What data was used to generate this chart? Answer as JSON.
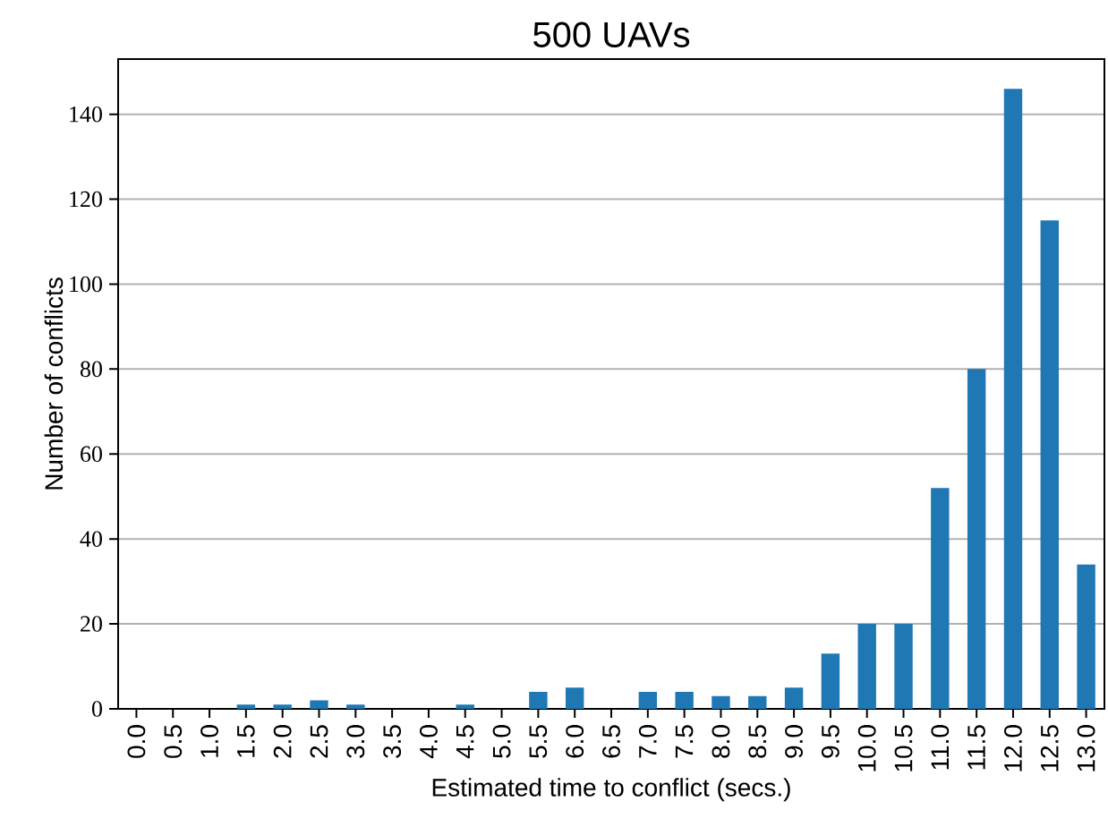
{
  "chart_data": {
    "type": "bar",
    "title": "500 UAVs",
    "xlabel": "Estimated time to conflict (secs.)",
    "ylabel": "Number of conflicts",
    "categories": [
      "0.0",
      "0.5",
      "1.0",
      "1.5",
      "2.0",
      "2.5",
      "3.0",
      "3.5",
      "4.0",
      "4.5",
      "5.0",
      "5.5",
      "6.0",
      "6.5",
      "7.0",
      "7.5",
      "8.0",
      "8.5",
      "9.0",
      "9.5",
      "10.0",
      "10.5",
      "11.0",
      "11.5",
      "12.0",
      "12.5",
      "13.0"
    ],
    "values": [
      0,
      0,
      0,
      1,
      1,
      2,
      1,
      0,
      0,
      1,
      0,
      4,
      5,
      0,
      4,
      4,
      3,
      3,
      5,
      13,
      20,
      20,
      52,
      80,
      146,
      115,
      34
    ],
    "color": "#1f77b4",
    "ylim": [
      0,
      153
    ],
    "yticks": [
      0,
      20,
      40,
      60,
      80,
      100,
      120,
      140
    ],
    "grid": "y"
  }
}
